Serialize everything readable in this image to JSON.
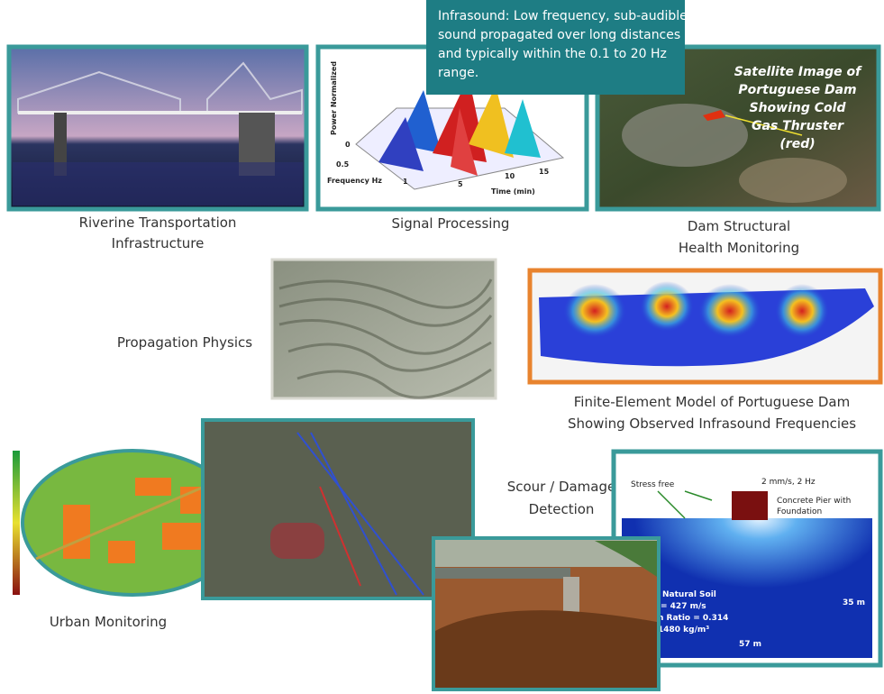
{
  "callout": [
    "Infrasound: Low frequency, sub-audible",
    "sound propagated over long distances",
    "and typically within the 0.1 to 20 Hz",
    "range."
  ],
  "riverine": {
    "caption": [
      "Riverine Transportation",
      "Infrastructure"
    ]
  },
  "signal": {
    "caption": [
      "Signal Processing"
    ],
    "y_label": "Power Normalized",
    "x_label": "Frequency Hz",
    "t_label": "Time (min)",
    "ticks": [
      "0",
      "0.5",
      "1",
      "5",
      "10",
      "15"
    ]
  },
  "dam": {
    "overlay": [
      "Satellite Image of",
      "Portuguese Dam",
      "Showing Cold",
      "Gas Thruster",
      "(red)"
    ],
    "caption": [
      "Dam Structural",
      "Health Monitoring"
    ]
  },
  "propagation": {
    "caption": [
      "Propagation Physics"
    ]
  },
  "finite_element": {
    "caption": [
      "Finite-Element Model of Portuguese Dam",
      "Showing Observed Infrasound Frequencies"
    ]
  },
  "urban": {
    "caption": [
      "Urban Monitoring"
    ]
  },
  "scour": {
    "caption": [
      "Scour / Damage",
      "Detection"
    ],
    "diagram": {
      "stress": "Stress free",
      "source": "2 mm/s, 2 Hz",
      "pier": [
        "Concrete Pier with",
        "Foundation"
      ],
      "depth": "35 m",
      "width": "57 m",
      "soil": [
        "Natural Soil",
        "= 427 m/s",
        "n Ratio = 0.314",
        "1480 kg/m³"
      ]
    }
  }
}
